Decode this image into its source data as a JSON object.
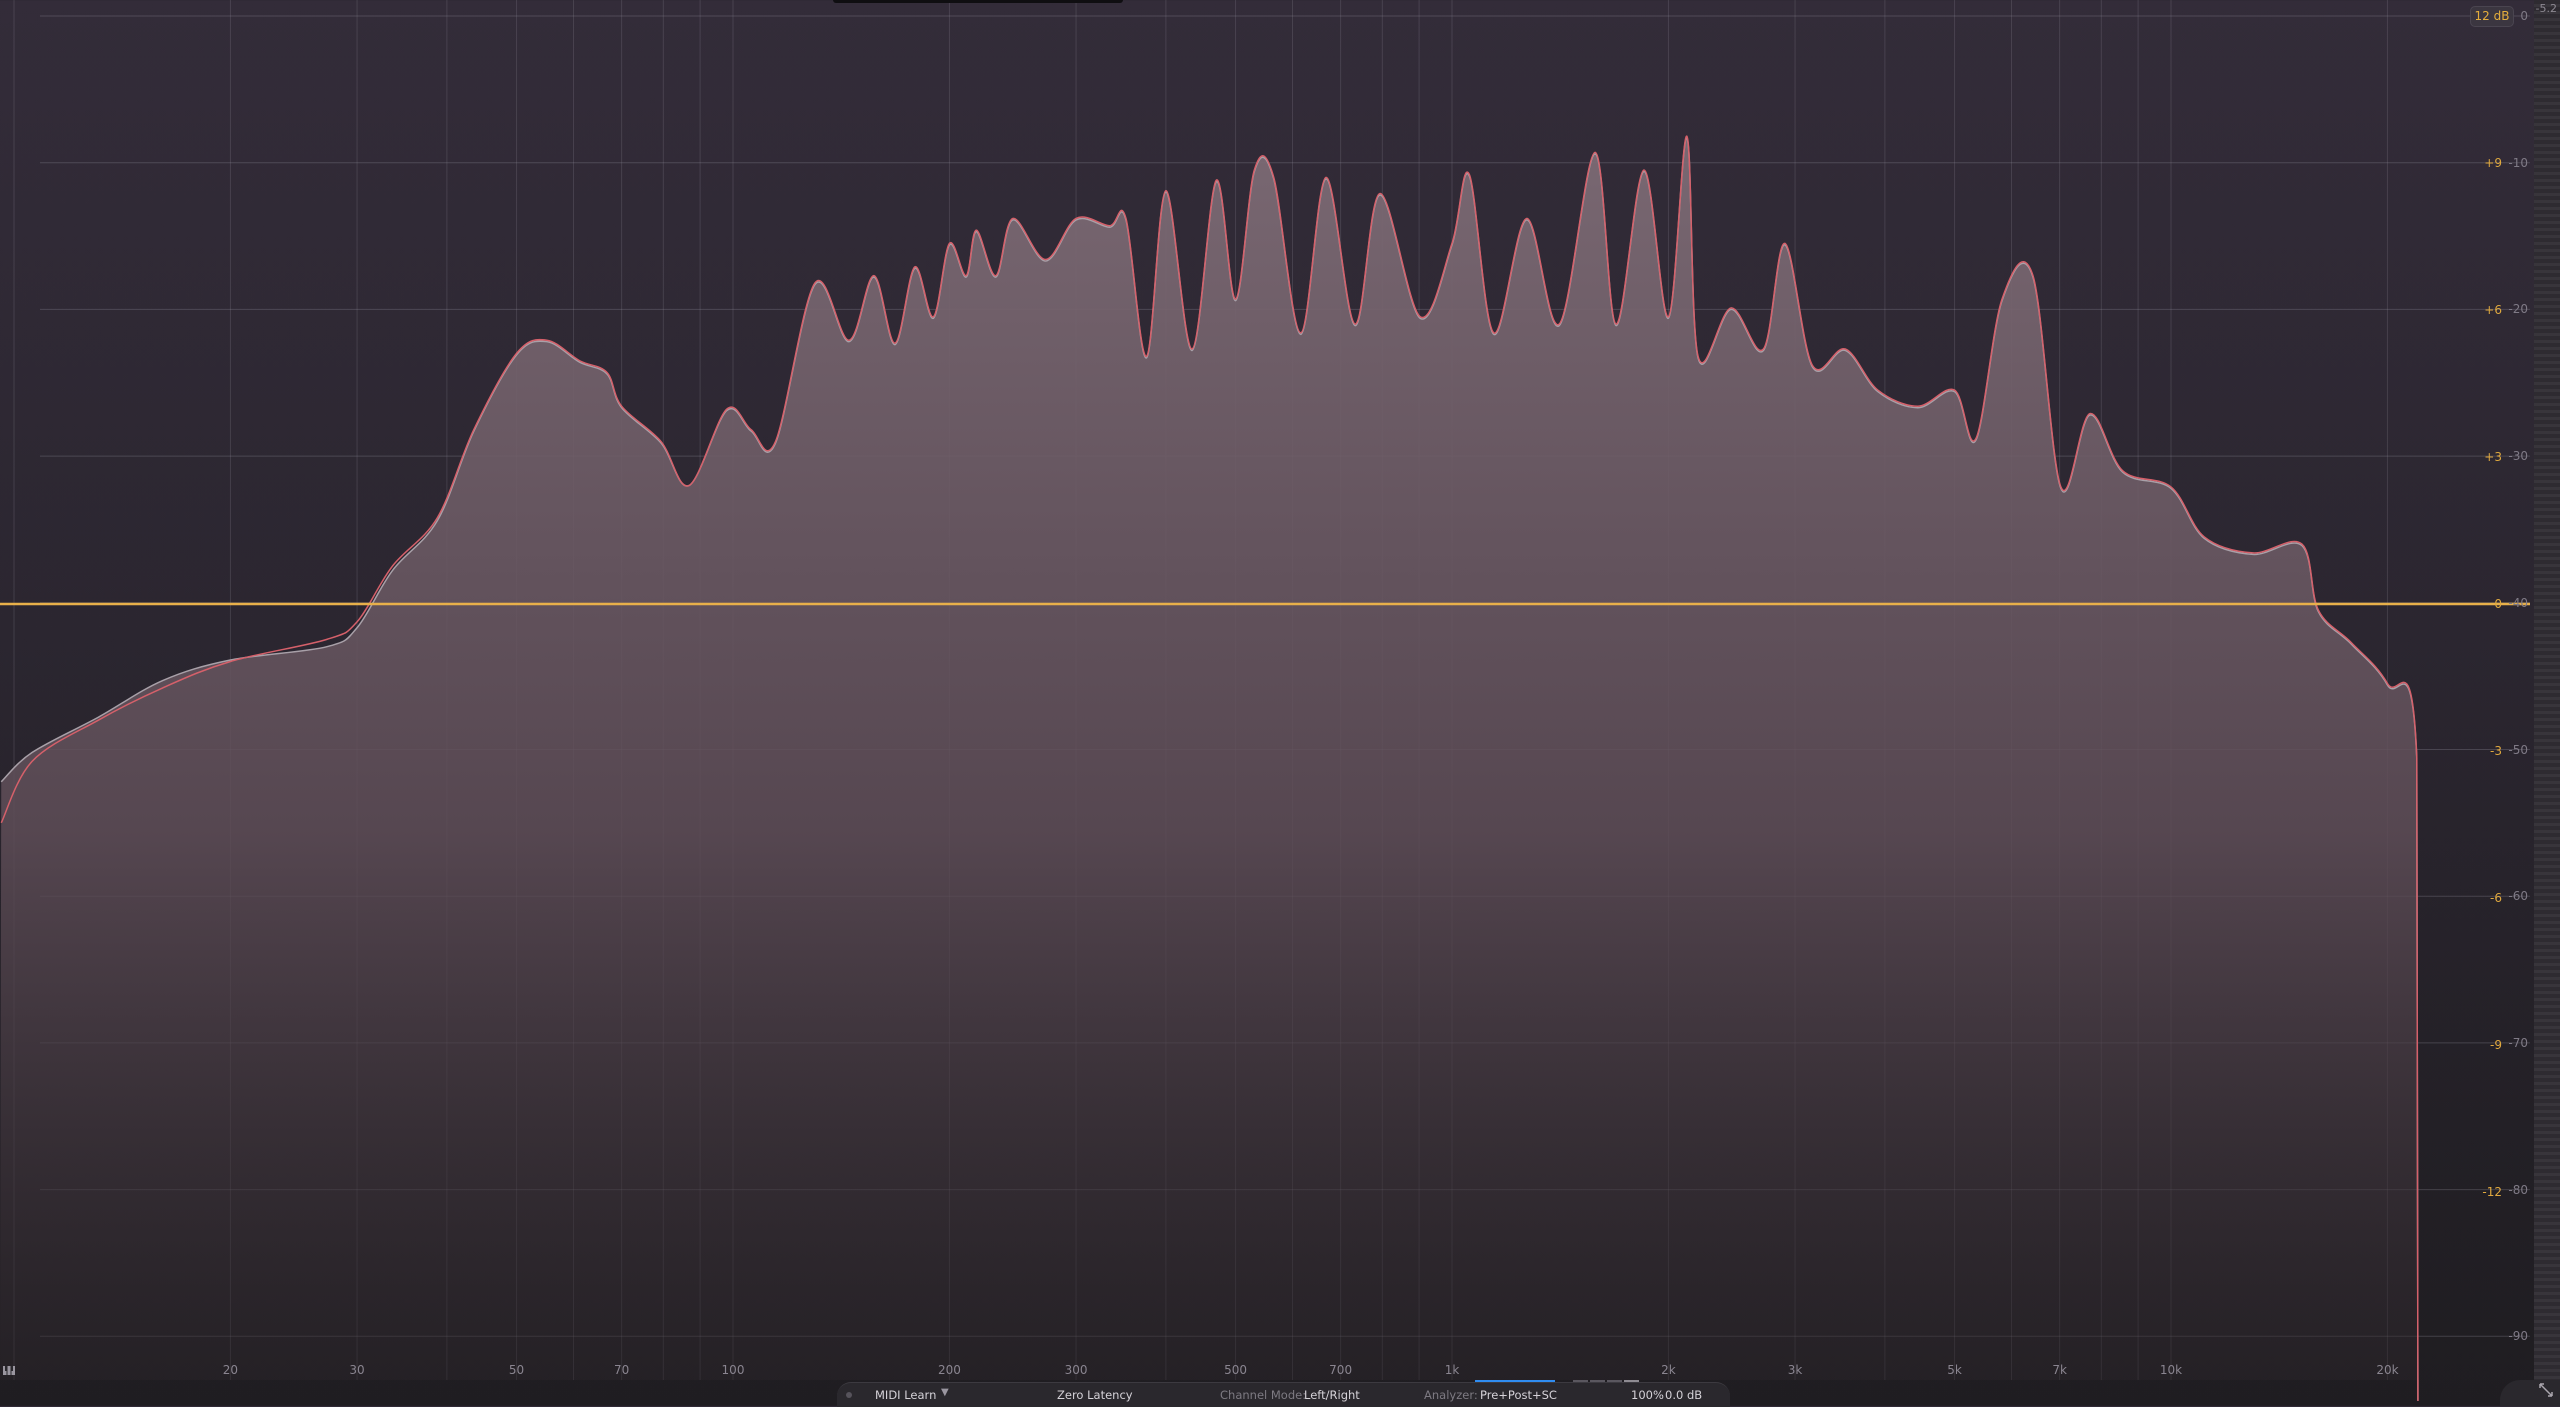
{
  "colors": {
    "eq_zero_line": "#e8b04a",
    "spectrum_fill": "#7a6a73",
    "post_line": "#d5606a",
    "pre_line": "#a8a0a8",
    "accent_blue": "#2f8cf0",
    "eq_label": "#e0a93f"
  },
  "range_button": "12 dB",
  "meter": {
    "peak_value": "-5.2"
  },
  "icons": {
    "piano": "piano-keys-icon",
    "resize": "resize-arrows-icon",
    "dropdown": "chevron-down-icon"
  },
  "bottom_bar": {
    "midi_learn": "MIDI Learn",
    "latency": "Zero Latency",
    "channel_mode_label": "Channel Mode:",
    "channel_mode_value": "Left/Right",
    "analyzer_label": "Analyzer:",
    "analyzer_value": "Pre+Post+SC",
    "zoom": "100%",
    "gain": "0.0 dB"
  },
  "chart_data": {
    "type": "area",
    "x_scale": "log",
    "xlim": [
      9.6,
      24000
    ],
    "x_ticks": [
      20,
      30,
      50,
      70,
      100,
      200,
      300,
      500,
      700,
      1000,
      2000,
      3000,
      5000,
      7000,
      10000,
      20000
    ],
    "x_tick_labels": [
      "20",
      "30",
      "50",
      "70",
      "100",
      "200",
      "300",
      "500",
      "700",
      "1k",
      "2k",
      "3k",
      "5k",
      "7k",
      "10k",
      "20k"
    ],
    "eq_axis": {
      "range": [
        -15,
        12
      ],
      "ticks": [
        "+9",
        "+6",
        "+3",
        "0",
        "-3",
        "-6",
        "-9",
        "-12"
      ],
      "values": [
        9,
        6,
        3,
        0,
        -3,
        -6,
        -9,
        -12
      ]
    },
    "analyzer_axis": {
      "range": [
        -91,
        0
      ],
      "ticks": [
        "0",
        "-10",
        "-20",
        "-30",
        "-40",
        "-50",
        "-60",
        "-70",
        "-80",
        "-90"
      ],
      "values": [
        0,
        -10,
        -20,
        -30,
        -40,
        -50,
        -60,
        -70,
        -80,
        -90
      ]
    },
    "eq_curve_db": 0,
    "grid": true,
    "series": [
      {
        "role": "pre",
        "points": [
          [
            9.6,
            -52.2
          ],
          [
            10.6,
            -50.2
          ],
          [
            13.1,
            -47.8
          ],
          [
            16.1,
            -45.3
          ],
          [
            20,
            -43.9
          ],
          [
            27.2,
            -43
          ],
          [
            30,
            -41.7
          ],
          [
            33.6,
            -37.8
          ],
          [
            38.8,
            -34.4
          ],
          [
            43.6,
            -28.3
          ],
          [
            50,
            -23.1
          ],
          [
            55.1,
            -22.2
          ],
          [
            61.2,
            -23.6
          ],
          [
            66.8,
            -24.4
          ],
          [
            70,
            -26.7
          ],
          [
            79.4,
            -29.1
          ],
          [
            86.9,
            -32
          ],
          [
            98,
            -26.9
          ],
          [
            106,
            -28.3
          ],
          [
            114.6,
            -29.1
          ],
          [
            130,
            -18.3
          ],
          [
            145,
            -22.2
          ],
          [
            157,
            -17.8
          ],
          [
            168,
            -22.4
          ],
          [
            179,
            -17.2
          ],
          [
            190,
            -20.6
          ],
          [
            200,
            -15.6
          ],
          [
            211,
            -17.8
          ],
          [
            218,
            -14.7
          ],
          [
            232,
            -17.8
          ],
          [
            245,
            -13.9
          ],
          [
            272,
            -16.7
          ],
          [
            300,
            -13.9
          ],
          [
            334,
            -14.4
          ],
          [
            352,
            -13.9
          ],
          [
            376,
            -23.3
          ],
          [
            400,
            -12
          ],
          [
            435,
            -22.8
          ],
          [
            470,
            -11.3
          ],
          [
            500,
            -19.4
          ],
          [
            531,
            -10.6
          ],
          [
            565,
            -11.1
          ],
          [
            616,
            -21.7
          ],
          [
            668,
            -11.1
          ],
          [
            733,
            -21.1
          ],
          [
            794,
            -12.2
          ],
          [
            903,
            -20.6
          ],
          [
            1000,
            -15.6
          ],
          [
            1057,
            -10.9
          ],
          [
            1143,
            -21.7
          ],
          [
            1270,
            -13.9
          ],
          [
            1410,
            -21.1
          ],
          [
            1581,
            -9.4
          ],
          [
            1691,
            -21.1
          ],
          [
            1849,
            -10.6
          ],
          [
            2000,
            -20.6
          ],
          [
            2122,
            -8.3
          ],
          [
            2199,
            -23.3
          ],
          [
            2444,
            -20
          ],
          [
            2711,
            -22.8
          ],
          [
            2904,
            -15.6
          ],
          [
            3170,
            -23.9
          ],
          [
            3524,
            -22.8
          ],
          [
            3910,
            -25.6
          ],
          [
            4446,
            -26.7
          ],
          [
            5000,
            -25.6
          ],
          [
            5355,
            -28.9
          ],
          [
            5821,
            -19.4
          ],
          [
            6427,
            -17.8
          ],
          [
            7028,
            -32.2
          ],
          [
            7713,
            -27.2
          ],
          [
            8567,
            -31.1
          ],
          [
            10000,
            -32.2
          ],
          [
            11120,
            -35.6
          ],
          [
            13000,
            -36.7
          ],
          [
            15210,
            -36.1
          ],
          [
            16030,
            -40.6
          ],
          [
            17800,
            -42.8
          ],
          [
            20000,
            -45.6
          ],
          [
            21970,
            -50.6
          ],
          [
            22050,
            -94.4
          ]
        ]
      },
      {
        "role": "post",
        "points": [
          [
            9.6,
            -55
          ],
          [
            10.6,
            -50.8
          ],
          [
            13.1,
            -48
          ],
          [
            16.1,
            -45.8
          ],
          [
            20,
            -44
          ],
          [
            27.2,
            -42.5
          ],
          [
            30,
            -41.3
          ],
          [
            33.6,
            -37.5
          ],
          [
            38.8,
            -34.2
          ],
          [
            43.6,
            -28.2
          ],
          [
            50,
            -23
          ],
          [
            55.1,
            -22.1
          ],
          [
            61.2,
            -23.5
          ],
          [
            66.8,
            -24.3
          ],
          [
            70,
            -26.6
          ],
          [
            79.4,
            -29
          ],
          [
            86.9,
            -32
          ],
          [
            98,
            -26.8
          ],
          [
            106,
            -28.2
          ],
          [
            114.6,
            -29
          ],
          [
            130,
            -18.2
          ],
          [
            145,
            -22.1
          ],
          [
            157,
            -17.7
          ],
          [
            168,
            -22.3
          ],
          [
            179,
            -17.1
          ],
          [
            190,
            -20.5
          ],
          [
            200,
            -15.5
          ],
          [
            211,
            -17.7
          ],
          [
            218,
            -14.6
          ],
          [
            232,
            -17.7
          ],
          [
            245,
            -13.8
          ],
          [
            272,
            -16.6
          ],
          [
            300,
            -13.8
          ],
          [
            334,
            -14.3
          ],
          [
            352,
            -13.8
          ],
          [
            376,
            -23.2
          ],
          [
            400,
            -11.9
          ],
          [
            435,
            -22.7
          ],
          [
            470,
            -11.2
          ],
          [
            500,
            -19.3
          ],
          [
            531,
            -10.5
          ],
          [
            565,
            -11
          ],
          [
            616,
            -21.6
          ],
          [
            668,
            -11
          ],
          [
            733,
            -21
          ],
          [
            794,
            -12.1
          ],
          [
            903,
            -20.5
          ],
          [
            1000,
            -15.5
          ],
          [
            1057,
            -10.8
          ],
          [
            1143,
            -21.6
          ],
          [
            1270,
            -13.8
          ],
          [
            1410,
            -21
          ],
          [
            1581,
            -9.3
          ],
          [
            1691,
            -21
          ],
          [
            1849,
            -10.5
          ],
          [
            2000,
            -20.5
          ],
          [
            2122,
            -8.2
          ],
          [
            2199,
            -23.2
          ],
          [
            2444,
            -19.9
          ],
          [
            2711,
            -22.7
          ],
          [
            2904,
            -15.5
          ],
          [
            3170,
            -23.8
          ],
          [
            3524,
            -22.7
          ],
          [
            3910,
            -25.5
          ],
          [
            4446,
            -26.6
          ],
          [
            5000,
            -25.5
          ],
          [
            5355,
            -28.8
          ],
          [
            5821,
            -19.3
          ],
          [
            6427,
            -17.7
          ],
          [
            7028,
            -32.1
          ],
          [
            7713,
            -27.1
          ],
          [
            8567,
            -31
          ],
          [
            10000,
            -32.1
          ],
          [
            11120,
            -35.5
          ],
          [
            13000,
            -36.6
          ],
          [
            15210,
            -36
          ],
          [
            16030,
            -40.5
          ],
          [
            17800,
            -42.7
          ],
          [
            20000,
            -45.5
          ],
          [
            21970,
            -50.5
          ],
          [
            22050,
            -94.4
          ]
        ]
      }
    ]
  }
}
